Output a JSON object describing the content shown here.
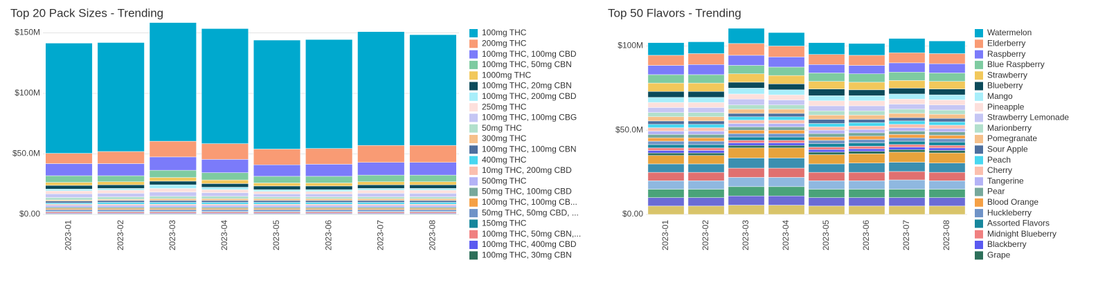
{
  "chart_data": [
    {
      "type": "stacked-bar",
      "title": "Top 20 Pack Sizes - Trending",
      "categories": [
        "2023-01",
        "2023-02",
        "2023-03",
        "2023-04",
        "2023-05",
        "2023-06",
        "2023-07",
        "2023-08"
      ],
      "ylim": [
        0,
        160
      ],
      "yticks": [
        {
          "value": 0,
          "label": "$0.00"
        },
        {
          "value": 50,
          "label": "$50.0M"
        },
        {
          "value": 100,
          "label": "$100M"
        },
        {
          "value": 150,
          "label": "$150M"
        }
      ],
      "grid": true,
      "series": [
        {
          "name": "100mg THC",
          "color": "#00a9ce",
          "values": [
            91,
            90,
            98,
            95,
            90,
            90,
            94,
            91.5
          ]
        },
        {
          "name": "200mg THC",
          "color": "#f99b74",
          "values": [
            8.5,
            10,
            13,
            13,
            13,
            13,
            14,
            14
          ]
        },
        {
          "name": "100mg THC, 100mg CBD",
          "color": "#7b7bfa",
          "values": [
            10,
            10,
            11,
            11,
            9.5,
            10,
            10.5,
            10.5
          ]
        },
        {
          "name": "100mg THC, 50mg CBN",
          "color": "#7ecba1",
          "values": [
            5.5,
            5,
            6,
            6,
            5.5,
            5.5,
            5.5,
            5.5
          ]
        },
        {
          "name": "1000mg THC",
          "color": "#f2c85b",
          "values": [
            2.5,
            2.5,
            3,
            3,
            2.5,
            2.5,
            2.5,
            2.5
          ]
        },
        {
          "name": "100mg THC, 20mg CBN",
          "color": "#0b4a5a",
          "values": [
            3,
            3,
            3,
            3,
            3,
            3,
            3,
            3
          ]
        },
        {
          "name": "100mg THC, 200mg CBD",
          "color": "#a8eefa",
          "values": [
            1.5,
            1.5,
            3,
            2,
            1.5,
            1.5,
            1.5,
            1.5
          ]
        },
        {
          "name": "250mg THC",
          "color": "#fde0dc",
          "values": [
            2.5,
            2.5,
            3,
            2.5,
            2,
            2,
            2.5,
            2.5
          ]
        },
        {
          "name": "100mg THC, 100mg CBG",
          "color": "#c5c6f4",
          "values": [
            3,
            3,
            3.5,
            3,
            2.5,
            2.5,
            3,
            3
          ]
        },
        {
          "name": "50mg THC",
          "color": "#b2e0cc",
          "values": [
            2,
            2,
            2,
            2,
            1.5,
            1.5,
            1.5,
            1.5
          ]
        },
        {
          "name": "300mg THC",
          "color": "#f6c08a",
          "values": [
            1,
            1,
            1.5,
            1.5,
            1.5,
            1.5,
            1.5,
            1.5
          ]
        },
        {
          "name": "100mg THC, 100mg CBN",
          "color": "#4d6f9e",
          "values": [
            1.5,
            1.5,
            1.5,
            1.5,
            1.5,
            1.5,
            1.5,
            1.5
          ]
        },
        {
          "name": "400mg THC",
          "color": "#48d7f0",
          "values": [
            1,
            1.5,
            1.5,
            1.5,
            1.5,
            1.5,
            1.5,
            1.5
          ]
        },
        {
          "name": "10mg THC, 200mg CBD",
          "color": "#fbbfae",
          "values": [
            1,
            1,
            1,
            1,
            1,
            1,
            1,
            1
          ]
        },
        {
          "name": "500mg THC",
          "color": "#b4b3f6",
          "values": [
            1.5,
            1.5,
            1.5,
            1.5,
            1.5,
            1.5,
            1.5,
            1.5
          ]
        },
        {
          "name": "50mg THC, 100mg CBD",
          "color": "#76a89b",
          "values": [
            1,
            1,
            1,
            1,
            1,
            1,
            1,
            1
          ]
        },
        {
          "name": "100mg THC, 100mg CB...",
          "color": "#f5a045",
          "values": [
            1,
            1,
            1,
            1,
            1,
            1,
            1,
            1
          ]
        },
        {
          "name": "50mg THC, 50mg CBD, ...",
          "color": "#6f93c7",
          "values": [
            1.5,
            1.5,
            1.5,
            1.5,
            1.5,
            1.5,
            1.5,
            1.5
          ]
        },
        {
          "name": "150mg THC",
          "color": "#16869c",
          "values": [
            0.5,
            0.5,
            0.5,
            0.5,
            0.5,
            0.5,
            0.5,
            0.5
          ]
        },
        {
          "name": "100mg THC, 50mg CBN,...",
          "color": "#f08080",
          "values": [
            1,
            1,
            1,
            1,
            1,
            1,
            1,
            1
          ]
        },
        {
          "name": "100mg THC, 400mg CBD",
          "color": "#5a5af0",
          "values": [
            0.5,
            0.5,
            0.5,
            0.5,
            0.5,
            0.5,
            0.5,
            0.5
          ]
        },
        {
          "name": "100mg THC, 30mg CBN",
          "color": "#2d6f5a",
          "values": [
            0.5,
            0.5,
            0.5,
            0.5,
            0.5,
            0.5,
            0.5,
            0.5
          ]
        }
      ]
    },
    {
      "type": "stacked-bar",
      "title": "Top 50 Flavors - Trending",
      "categories": [
        "2023-01",
        "2023-02",
        "2023-03",
        "2023-04",
        "2023-05",
        "2023-06",
        "2023-07",
        "2023-08"
      ],
      "ylim": [
        0,
        115
      ],
      "yticks": [
        {
          "value": 0,
          "label": "$0.00"
        },
        {
          "value": 50,
          "label": "$50.0M"
        },
        {
          "value": 100,
          "label": "$100M"
        }
      ],
      "grid": true,
      "series": [
        {
          "name": "Watermelon",
          "color": "#00a9ce",
          "values": [
            7.5,
            7,
            9,
            8,
            7,
            7,
            8.5,
            7.5
          ]
        },
        {
          "name": "Elderberry",
          "color": "#f99b74",
          "values": [
            6,
            6.5,
            7,
            6.5,
            6,
            6,
            6,
            6
          ]
        },
        {
          "name": "Raspberry",
          "color": "#7b7bfa",
          "values": [
            5.5,
            6,
            6,
            6,
            5,
            5,
            5.5,
            5.5
          ]
        },
        {
          "name": "Blue Raspberry",
          "color": "#7ecba1",
          "values": [
            5,
            5,
            5,
            5,
            5,
            5,
            5,
            5
          ]
        },
        {
          "name": "Strawberry",
          "color": "#f2c85b",
          "values": [
            5,
            5,
            5,
            5,
            4.5,
            4.5,
            4.5,
            4.5
          ]
        },
        {
          "name": "Blueberry",
          "color": "#0b4a5a",
          "values": [
            3.5,
            3.5,
            3.5,
            3.5,
            4,
            3.5,
            3.5,
            3.5
          ]
        },
        {
          "name": "Mango",
          "color": "#a8eefa",
          "values": [
            3,
            3,
            3.5,
            3,
            3,
            3,
            3,
            3
          ]
        },
        {
          "name": "Pineapple",
          "color": "#fde0dc",
          "values": [
            3,
            3,
            3,
            3,
            3,
            3,
            3,
            3
          ]
        },
        {
          "name": "Strawberry Lemonade",
          "color": "#c5c6f4",
          "values": [
            3,
            3,
            3.5,
            3,
            3,
            3,
            3,
            3
          ]
        },
        {
          "name": "Marionberry",
          "color": "#b2e0cc",
          "values": [
            2.5,
            2.5,
            2.5,
            2.5,
            2.5,
            2.5,
            2.5,
            2.5
          ]
        },
        {
          "name": "Pomegranate",
          "color": "#f6c08a",
          "values": [
            2.5,
            2.5,
            2.5,
            2.5,
            2.5,
            2.5,
            2.5,
            2.5
          ]
        },
        {
          "name": "Sour Apple",
          "color": "#4d6f9e",
          "values": [
            2,
            2,
            2,
            2,
            2.5,
            2,
            2,
            2
          ]
        },
        {
          "name": "Peach",
          "color": "#48d7f0",
          "values": [
            2,
            2,
            2,
            2,
            2,
            2,
            2,
            2
          ]
        },
        {
          "name": "Cherry",
          "color": "#fbbfae",
          "values": [
            2,
            2,
            2,
            2,
            2,
            2,
            2,
            2
          ]
        },
        {
          "name": "Tangerine",
          "color": "#b4b3f6",
          "values": [
            2,
            2,
            2,
            2,
            2,
            2,
            2,
            2
          ]
        },
        {
          "name": "Pear",
          "color": "#76a89b",
          "values": [
            2,
            2,
            2,
            2,
            2,
            2,
            2,
            2
          ]
        },
        {
          "name": "Blood Orange",
          "color": "#f5a045",
          "values": [
            2,
            2,
            2,
            2,
            2,
            2,
            2,
            2
          ]
        },
        {
          "name": "Huckleberry",
          "color": "#6f93c7",
          "values": [
            2,
            2,
            2,
            2,
            2,
            2,
            2,
            2
          ]
        },
        {
          "name": "Assorted Flavors",
          "color": "#16869c",
          "values": [
            2,
            2,
            2,
            2,
            2,
            2,
            2,
            2
          ]
        },
        {
          "name": "Midnight Blueberry",
          "color": "#f08080",
          "values": [
            1.5,
            1.5,
            1.5,
            1.5,
            1.5,
            1.5,
            1.5,
            1.5
          ]
        },
        {
          "name": "Blackberry",
          "color": "#5a5af0",
          "values": [
            1.5,
            1.5,
            1.5,
            1.5,
            1.5,
            1.5,
            1.5,
            1.5
          ]
        },
        {
          "name": "Grape",
          "color": "#2d6f5a",
          "values": [
            1.5,
            1.5,
            1.5,
            1.5,
            1.5,
            1.5,
            1.5,
            1.5
          ]
        },
        {
          "color": "#e8a33c",
          "values": [
            5,
            5,
            6,
            6,
            5.5,
            5.5,
            6,
            6
          ]
        },
        {
          "color": "#3b8fb0",
          "values": [
            5,
            5,
            6,
            6,
            5,
            5.5,
            5.5,
            5.5
          ]
        },
        {
          "color": "#e07070",
          "values": [
            5,
            5,
            5.5,
            5.5,
            5,
            5,
            5,
            5
          ]
        },
        {
          "color": "#8fb8e0",
          "values": [
            5,
            5,
            5.5,
            5.5,
            5,
            5,
            5.5,
            5
          ]
        },
        {
          "color": "#4aa37a",
          "values": [
            5,
            5,
            5.5,
            5.5,
            5,
            5,
            5,
            5
          ]
        },
        {
          "color": "#6b6bd6",
          "values": [
            5,
            5,
            5.5,
            5.5,
            5,
            5,
            5,
            5
          ]
        },
        {
          "color": "#d9c46a",
          "values": [
            5,
            5,
            5.5,
            5.5,
            5,
            5,
            5,
            5
          ]
        }
      ]
    }
  ]
}
